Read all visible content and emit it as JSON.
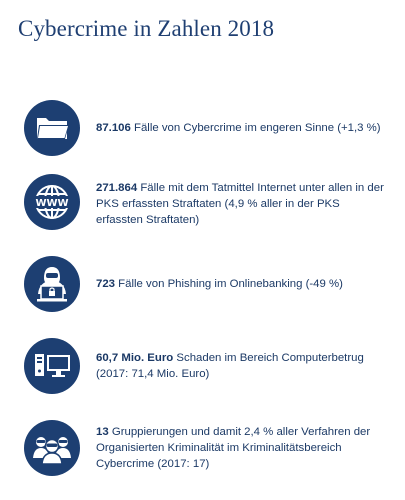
{
  "title": "Cybercrime in Zahlen 2018",
  "items": [
    {
      "icon": "folder-icon",
      "value": "87.106",
      "text": " Fälle von Cybercrime im engeren Sinne (+1,3 %)"
    },
    {
      "icon": "www-globe-icon",
      "value": "271.864",
      "text": " Fälle mit dem Tatmittel Internet unter allen in der PKS erfassten Straftaten (4,9 % aller in der PKS erfassten Straftaten)"
    },
    {
      "icon": "hacker-laptop-icon",
      "value": "723",
      "text": " Fälle von Phishing im Onlinebanking (-49 %)"
    },
    {
      "icon": "computer-icon",
      "value": "60,7 Mio. Euro",
      "text": " Schaden im Bereich Computerbetrug (2017: 71,4 Mio. Euro)"
    },
    {
      "icon": "group-masked-people-icon",
      "value": "13",
      "text": " Gruppierungen und damit 2,4 % aller Verfahren der Organisierten Kriminalität im Kriminalitätsbereich Cybercrime (2017: 17)"
    }
  ]
}
